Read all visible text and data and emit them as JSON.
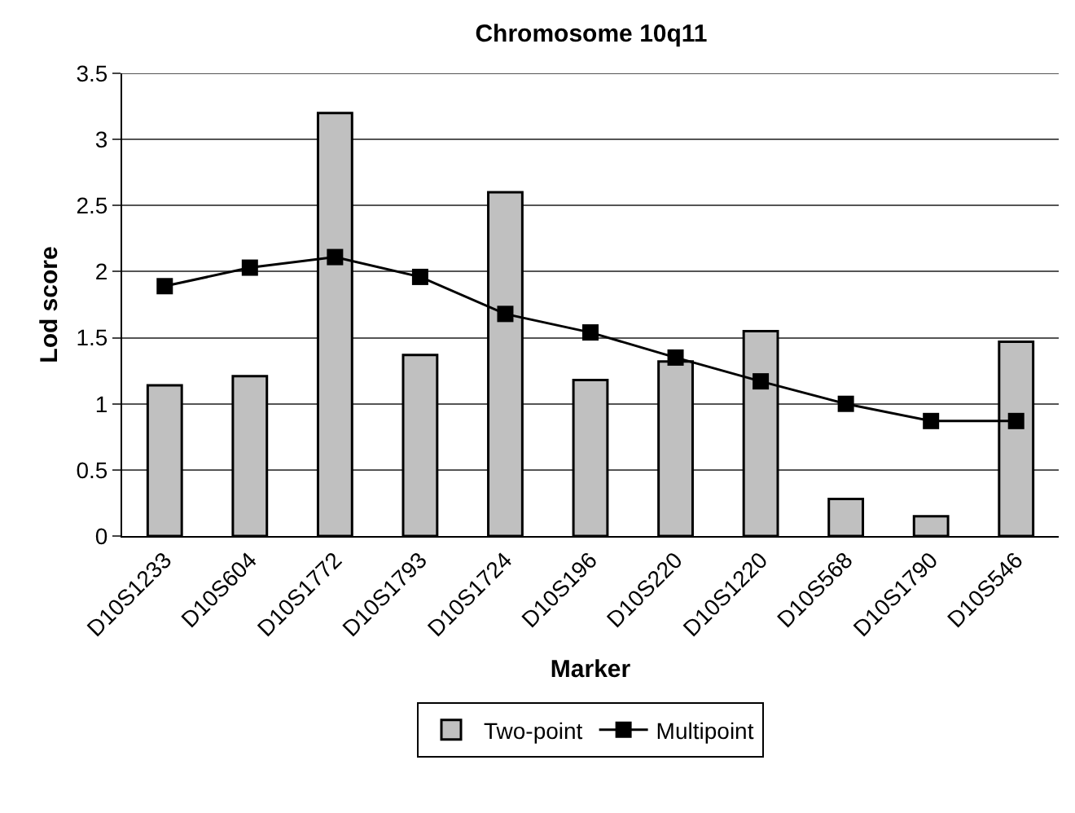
{
  "chart_data": {
    "type": "bar",
    "title": "Chromosome 10q11",
    "xlabel": "Marker",
    "ylabel": "Lod score",
    "categories": [
      "D10S1233",
      "D10S604",
      "D10S1772",
      "D10S1793",
      "D10S1724",
      "D10S196",
      "D10S220",
      "D10S1220",
      "D10S568",
      "D10S1790",
      "D10S546"
    ],
    "series": [
      {
        "name": "Two-point",
        "color": "#c0c0c0",
        "values": [
          1.14,
          1.21,
          3.2,
          1.37,
          2.6,
          1.18,
          1.32,
          1.55,
          0.28,
          0.15,
          1.47
        ]
      },
      {
        "name": "Multipoint",
        "type": "line",
        "color": "#000000",
        "marker": "square",
        "values": [
          1.89,
          2.03,
          2.11,
          1.96,
          1.68,
          1.54,
          1.35,
          1.17,
          1.0,
          0.87,
          0.87
        ]
      }
    ],
    "ylim": [
      0,
      3.5
    ],
    "yticks": [
      0,
      0.5,
      1,
      1.5,
      2,
      2.5,
      3,
      3.5
    ],
    "grid": "y",
    "legend": "bottom"
  }
}
